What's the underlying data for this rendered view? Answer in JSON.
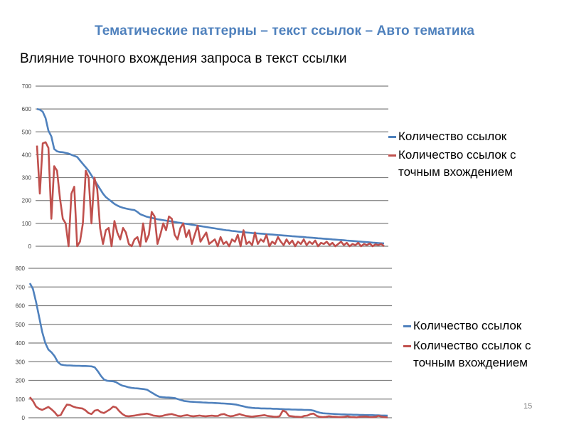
{
  "slide": {
    "title": "Тематические паттерны – текст ссылок – Авто тематика",
    "subtitle": "Влияние точного вхождения запроса в текст ссылки",
    "page_number": "15"
  },
  "colors": {
    "title": "#4f81bd",
    "series_blue": "#4f81bd",
    "series_red": "#c0504d",
    "grid": "#7f7f7f"
  },
  "chart_data": [
    {
      "type": "line",
      "ylim": [
        0,
        700
      ],
      "yticks": [
        0,
        100,
        200,
        300,
        400,
        500,
        600,
        700
      ],
      "grid": true,
      "legend_position": "right",
      "series": [
        {
          "name": "Количество ссылок",
          "color": "#4f81bd",
          "values": [
            600,
            597,
            588,
            560,
            505,
            480,
            425,
            415,
            412,
            411,
            408,
            405,
            400,
            395,
            390,
            375,
            360,
            345,
            330,
            310,
            290,
            270,
            250,
            230,
            215,
            205,
            195,
            185,
            178,
            172,
            168,
            165,
            162,
            160,
            158,
            150,
            140,
            135,
            130,
            127,
            124,
            121,
            118,
            116,
            114,
            112,
            110,
            108,
            106,
            104,
            102,
            100,
            98,
            96,
            94,
            92,
            90,
            88,
            86,
            84,
            82,
            80,
            78,
            76,
            74,
            72,
            70,
            69,
            67,
            66,
            64,
            63,
            62,
            60,
            59,
            58,
            57,
            56,
            55,
            54,
            53,
            52,
            51,
            50,
            49,
            48,
            47,
            46,
            45,
            44,
            43,
            42,
            41,
            40,
            39,
            38,
            37,
            36,
            35,
            34,
            33,
            32,
            31,
            30,
            29,
            28,
            27,
            26,
            25,
            24,
            23,
            22,
            21,
            20,
            19,
            18,
            17,
            16,
            15,
            14,
            13,
            12
          ]
        },
        {
          "name": "Количество ссылок с точным вхождением",
          "color": "#c0504d",
          "values": [
            440,
            230,
            450,
            455,
            430,
            120,
            350,
            330,
            210,
            120,
            100,
            0,
            230,
            260,
            0,
            20,
            100,
            330,
            300,
            100,
            300,
            250,
            80,
            10,
            70,
            80,
            0,
            110,
            60,
            30,
            80,
            60,
            10,
            0,
            30,
            40,
            0,
            100,
            20,
            50,
            150,
            130,
            10,
            50,
            100,
            70,
            130,
            120,
            50,
            30,
            80,
            100,
            40,
            70,
            10,
            50,
            90,
            20,
            40,
            60,
            10,
            20,
            30,
            0,
            40,
            10,
            20,
            0,
            30,
            20,
            50,
            0,
            70,
            10,
            20,
            5,
            60,
            10,
            30,
            20,
            50,
            0,
            20,
            10,
            40,
            20,
            5,
            30,
            10,
            25,
            0,
            20,
            10,
            30,
            5,
            20,
            10,
            25,
            0,
            15,
            10,
            20,
            5,
            15,
            0,
            10,
            20,
            5,
            15,
            0,
            10,
            5,
            15,
            0,
            10,
            5,
            12,
            0,
            8,
            5,
            10,
            0
          ]
        }
      ]
    },
    {
      "type": "line",
      "ylim": [
        0,
        800
      ],
      "yticks": [
        0,
        100,
        200,
        300,
        400,
        500,
        600,
        700,
        800
      ],
      "grid": true,
      "legend_position": "right",
      "series": [
        {
          "name": "Количество ссылок",
          "color": "#4f81bd",
          "values": [
            720,
            690,
            620,
            540,
            460,
            400,
            365,
            350,
            330,
            300,
            285,
            282,
            280,
            280,
            279,
            278,
            278,
            277,
            277,
            276,
            275,
            270,
            250,
            225,
            205,
            198,
            196,
            195,
            190,
            180,
            172,
            168,
            163,
            160,
            158,
            157,
            155,
            153,
            150,
            140,
            130,
            120,
            112,
            110,
            109,
            108,
            107,
            105,
            100,
            95,
            90,
            88,
            86,
            85,
            84,
            83,
            82,
            81,
            80,
            80,
            79,
            78,
            77,
            76,
            75,
            74,
            72,
            70,
            66,
            62,
            58,
            55,
            53,
            52,
            51,
            50,
            50,
            49,
            49,
            48,
            48,
            47,
            46,
            45,
            45,
            44,
            44,
            43,
            43,
            42,
            42,
            41,
            38,
            32,
            27,
            24,
            23,
            22,
            21,
            20,
            19,
            18,
            18,
            17,
            17,
            16,
            16,
            15,
            15,
            14,
            14,
            14,
            13,
            13,
            12,
            12,
            11
          ]
        },
        {
          "name": "Количество ссылок с точным вхождением",
          "color": "#c0504d",
          "values": [
            110,
            90,
            60,
            48,
            42,
            50,
            58,
            45,
            30,
            10,
            15,
            45,
            70,
            68,
            60,
            55,
            52,
            50,
            40,
            25,
            20,
            38,
            42,
            30,
            25,
            35,
            45,
            60,
            55,
            35,
            20,
            10,
            8,
            10,
            12,
            15,
            18,
            20,
            22,
            18,
            12,
            10,
            8,
            10,
            15,
            18,
            20,
            15,
            10,
            8,
            12,
            14,
            10,
            8,
            10,
            12,
            9,
            8,
            10,
            11,
            9,
            10,
            18,
            20,
            12,
            8,
            10,
            15,
            20,
            14,
            10,
            8,
            6,
            8,
            10,
            12,
            14,
            10,
            8,
            6,
            5,
            8,
            38,
            32,
            10,
            8,
            6,
            5,
            4,
            10,
            12,
            20,
            22,
            10,
            5,
            4,
            5,
            8,
            6,
            5,
            4,
            3,
            5,
            8,
            4,
            3,
            2,
            5,
            6,
            7,
            4,
            3,
            5,
            10,
            6,
            3,
            2
          ]
        }
      ]
    }
  ]
}
